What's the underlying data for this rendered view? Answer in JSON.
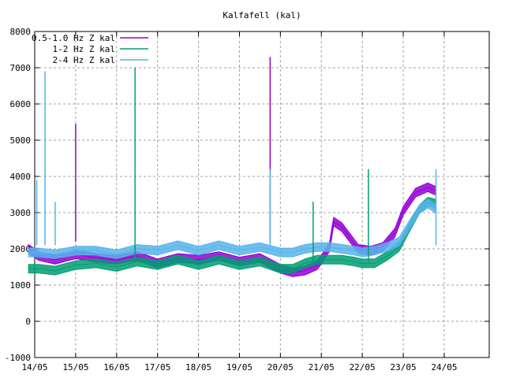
{
  "chart_data": {
    "type": "line",
    "title": "Kalfafell (kal)",
    "xlabel": "",
    "ylabel": "",
    "ylim": [
      -1000,
      8000
    ],
    "yticks": [
      -1000,
      0,
      1000,
      2000,
      3000,
      4000,
      5000,
      6000,
      7000,
      8000
    ],
    "xlim": [
      0,
      11.1
    ],
    "xticks": [
      {
        "x": 0,
        "label": "14/05"
      },
      {
        "x": 1,
        "label": "15/05"
      },
      {
        "x": 2,
        "label": "16/05"
      },
      {
        "x": 3,
        "label": "17/05"
      },
      {
        "x": 4,
        "label": "18/05"
      },
      {
        "x": 5,
        "label": "19/05"
      },
      {
        "x": 6,
        "label": "20/05"
      },
      {
        "x": 7,
        "label": "21/05"
      },
      {
        "x": 8,
        "label": "22/05"
      },
      {
        "x": 9,
        "label": "23/05"
      },
      {
        "x": 10,
        "label": "24/05"
      }
    ],
    "grid": true,
    "legend_position": "top-left",
    "series": [
      {
        "name": "0.5-1.0 Hz Z kal",
        "color": "#9400d3",
        "x": [
          -0.15,
          0.1,
          0.5,
          1.0,
          1.5,
          2.0,
          2.5,
          3.0,
          3.5,
          4.0,
          4.5,
          5.0,
          5.5,
          6.0,
          6.3,
          6.6,
          6.9,
          7.0,
          7.2,
          7.3,
          7.5,
          7.7,
          7.9,
          8.2,
          8.5,
          8.8,
          9.0,
          9.3,
          9.6,
          9.8
        ],
        "y": [
          2000,
          1800,
          1700,
          1850,
          1750,
          1700,
          1800,
          1600,
          1750,
          1700,
          1800,
          1650,
          1750,
          1450,
          1350,
          1400,
          1550,
          1700,
          2050,
          2750,
          2600,
          2300,
          2000,
          1950,
          2050,
          2450,
          3050,
          3550,
          3700,
          3600
        ]
      },
      {
        "name": "1-2 Hz Z kal",
        "color": "#009e73",
        "x": [
          -0.15,
          0.1,
          0.5,
          1.0,
          1.5,
          2.0,
          2.5,
          3.0,
          3.5,
          4.0,
          4.5,
          5.0,
          5.5,
          6.0,
          6.3,
          6.6,
          6.9,
          7.2,
          7.5,
          7.8,
          8.0,
          8.3,
          8.6,
          8.9,
          9.2,
          9.4,
          9.6,
          9.8
        ],
        "y": [
          1450,
          1450,
          1400,
          1550,
          1600,
          1500,
          1650,
          1550,
          1700,
          1550,
          1700,
          1550,
          1650,
          1450,
          1450,
          1600,
          1700,
          1700,
          1700,
          1650,
          1600,
          1600,
          1800,
          2050,
          2700,
          3100,
          3300,
          3250
        ]
      },
      {
        "name": "2-4 Hz Z kal",
        "color": "#56b4e9",
        "x": [
          -0.15,
          0.1,
          0.5,
          1.0,
          1.5,
          2.0,
          2.5,
          3.0,
          3.5,
          4.0,
          4.5,
          5.0,
          5.5,
          6.0,
          6.3,
          6.6,
          6.9,
          7.2,
          7.5,
          7.8,
          8.0,
          8.3,
          8.6,
          8.9,
          9.2,
          9.4,
          9.6,
          9.8
        ],
        "y": [
          1900,
          1900,
          1850,
          1950,
          1950,
          1850,
          2000,
          1950,
          2100,
          1950,
          2100,
          1950,
          2050,
          1900,
          1900,
          2000,
          2050,
          2050,
          2000,
          1950,
          1900,
          1950,
          2050,
          2200,
          2750,
          3100,
          3250,
          3100
        ]
      }
    ],
    "spikes": [
      {
        "series": 2,
        "x": 0.05,
        "y": 3900
      },
      {
        "series": 2,
        "x": 0.25,
        "y": 6900
      },
      {
        "series": 2,
        "x": 0.5,
        "y": 3300
      },
      {
        "series": 0,
        "x": 1.0,
        "y": 5450
      },
      {
        "series": 1,
        "x": 2.45,
        "y": 7000
      },
      {
        "series": 0,
        "x": 5.75,
        "y": 7300
      },
      {
        "series": 2,
        "x": 5.75,
        "y": 4200
      },
      {
        "series": 1,
        "x": 6.8,
        "y": 3300
      },
      {
        "series": 1,
        "x": 8.15,
        "y": 4200
      },
      {
        "series": 2,
        "x": 9.8,
        "y": 4200
      }
    ]
  }
}
